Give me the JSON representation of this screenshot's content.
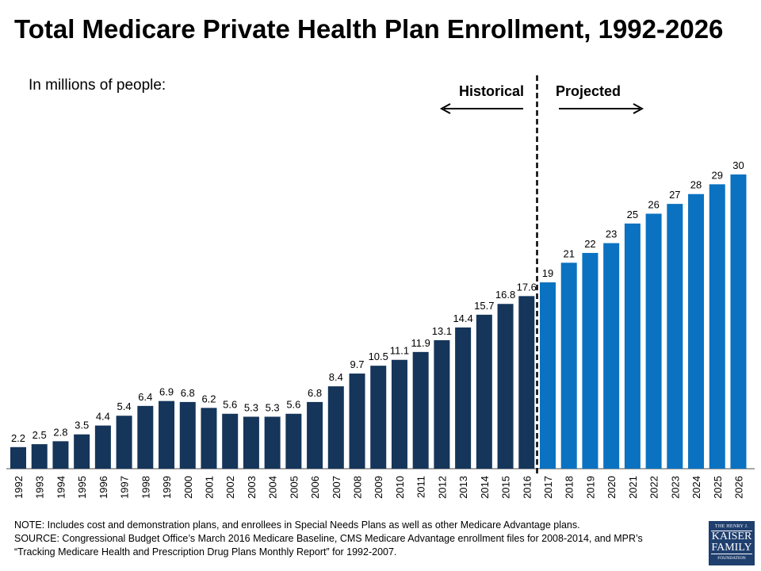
{
  "title": "Total Medicare Private Health Plan Enrollment, 1992-2026",
  "unit_label": "In millions of people:",
  "notes": {
    "note": "NOTE:  Includes cost and demonstration plans, and enrollees in Special Needs Plans as well as other Medicare Advantage plans.",
    "source1": "SOURCE:  Congressional Budget Office’s March 2016 Medicare Baseline, CMS Medicare Advantage enrollment files for 2008-2014, and MPR’s",
    "source2": "“Tracking Medicare Health and Prescription Drug Plans Monthly Report” for 1992-2007."
  },
  "logo": {
    "line1": "THE HENRY J.",
    "line2": "KAISER",
    "line3": "FAMILY",
    "line4": "FOUNDATION"
  },
  "chart_data": {
    "type": "bar",
    "categories": [
      "1992",
      "1993",
      "1994",
      "1995",
      "1996",
      "1997",
      "1998",
      "1999",
      "2000",
      "2001",
      "2002",
      "2003",
      "2004",
      "2005",
      "2006",
      "2007",
      "2008",
      "2009",
      "2010",
      "2011",
      "2012",
      "2013",
      "2014",
      "2015",
      "2016",
      "2017",
      "2018",
      "2019",
      "2020",
      "2021",
      "2022",
      "2023",
      "2024",
      "2025",
      "2026"
    ],
    "values": [
      2.2,
      2.5,
      2.8,
      3.5,
      4.4,
      5.4,
      6.4,
      6.9,
      6.8,
      6.2,
      5.6,
      5.3,
      5.3,
      5.6,
      6.8,
      8.4,
      9.7,
      10.5,
      11.1,
      11.9,
      13.1,
      14.4,
      15.7,
      16.8,
      17.6,
      19,
      21,
      22,
      23,
      25,
      26,
      27,
      28,
      29,
      30
    ],
    "data_labels": [
      "2.2",
      "2.5",
      "2.8",
      "3.5",
      "4.4",
      "5.4",
      "6.4",
      "6.9",
      "6.8",
      "6.2",
      "5.6",
      "5.3",
      "5.3",
      "5.6",
      "6.8",
      "8.4",
      "9.7",
      "10.5",
      "11.1",
      "11.9",
      "13.1",
      "14.4",
      "15.7",
      "16.8",
      "17.6",
      "19",
      "21",
      "22",
      "23",
      "25",
      "26",
      "27",
      "28",
      "29",
      "30"
    ],
    "historical_label": "Historical",
    "projected_label": "Projected",
    "projected_from": "2017",
    "colors": {
      "historical": "#15355a",
      "projected": "#0a72c0"
    },
    "ylim": [
      0,
      30
    ],
    "grid": false
  }
}
